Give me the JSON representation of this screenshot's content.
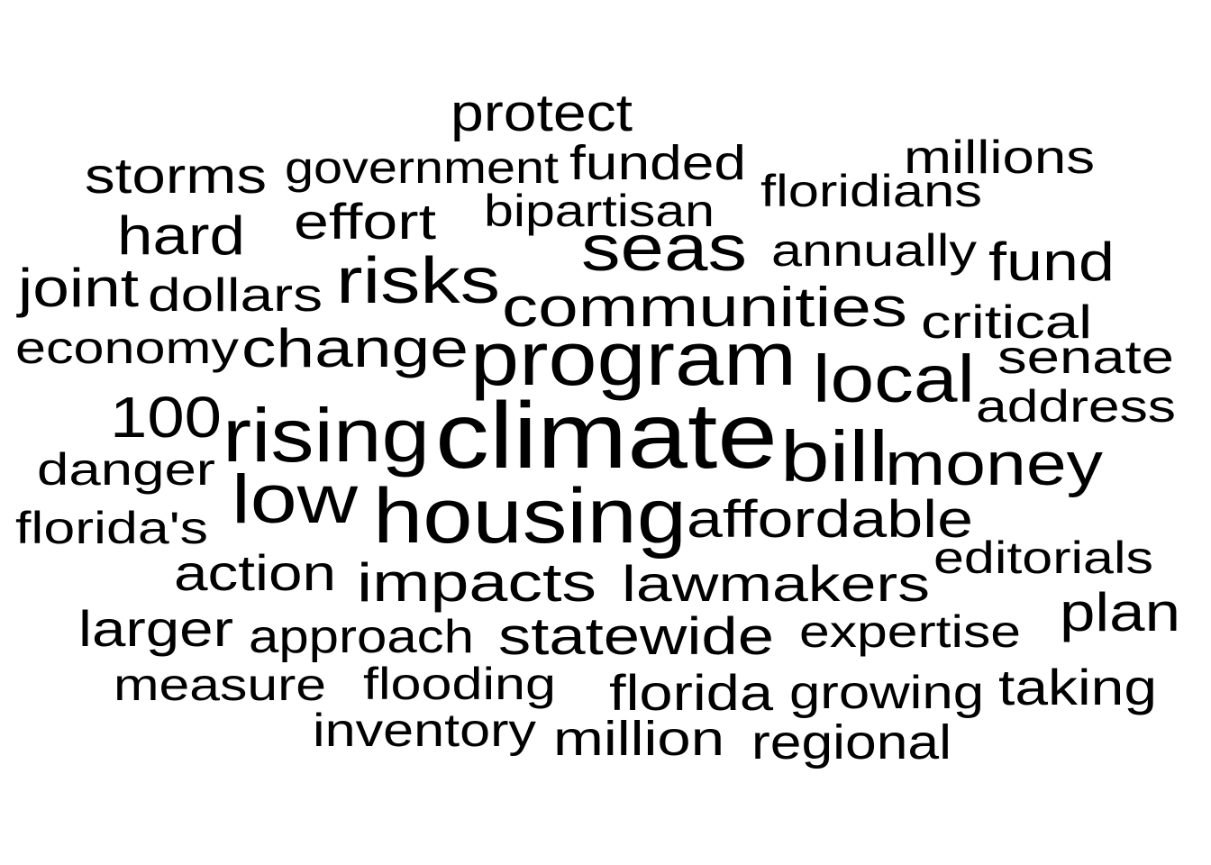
{
  "word_cloud": {
    "color": "#000000",
    "background": "#ffffff",
    "words": [
      {
        "text": "climate",
        "weight": 10
      },
      {
        "text": "housing",
        "weight": 8
      },
      {
        "text": "rising",
        "weight": 8
      },
      {
        "text": "program",
        "weight": 8
      },
      {
        "text": "low",
        "weight": 7
      },
      {
        "text": "bill",
        "weight": 7
      },
      {
        "text": "local",
        "weight": 6
      },
      {
        "text": "money",
        "weight": 6
      },
      {
        "text": "risks",
        "weight": 6
      },
      {
        "text": "seas",
        "weight": 6
      },
      {
        "text": "communities",
        "weight": 6
      },
      {
        "text": "change",
        "weight": 5
      },
      {
        "text": "100",
        "weight": 5
      },
      {
        "text": "affordable",
        "weight": 5
      },
      {
        "text": "impacts",
        "weight": 5
      },
      {
        "text": "statewide",
        "weight": 5
      },
      {
        "text": "hard",
        "weight": 5
      },
      {
        "text": "joint",
        "weight": 5
      },
      {
        "text": "fund",
        "weight": 5
      },
      {
        "text": "plan",
        "weight": 5
      },
      {
        "text": "protect",
        "weight": 5
      },
      {
        "text": "storms",
        "weight": 4
      },
      {
        "text": "effort",
        "weight": 4
      },
      {
        "text": "funded",
        "weight": 4
      },
      {
        "text": "lawmakers",
        "weight": 4
      },
      {
        "text": "larger",
        "weight": 4
      },
      {
        "text": "action",
        "weight": 4
      },
      {
        "text": "taking",
        "weight": 4
      },
      {
        "text": "florida",
        "weight": 4
      },
      {
        "text": "million",
        "weight": 4
      },
      {
        "text": "regional",
        "weight": 4
      },
      {
        "text": "growing",
        "weight": 4
      },
      {
        "text": "critical",
        "weight": 4
      },
      {
        "text": "millions",
        "weight": 4
      },
      {
        "text": "senate",
        "weight": 4
      },
      {
        "text": "government",
        "weight": 3
      },
      {
        "text": "bipartisan",
        "weight": 3
      },
      {
        "text": "floridians",
        "weight": 3
      },
      {
        "text": "annually",
        "weight": 3
      },
      {
        "text": "dollars",
        "weight": 3
      },
      {
        "text": "economy",
        "weight": 3
      },
      {
        "text": "address",
        "weight": 3
      },
      {
        "text": "danger",
        "weight": 3
      },
      {
        "text": "florida's",
        "weight": 3
      },
      {
        "text": "editorials",
        "weight": 3
      },
      {
        "text": "approach",
        "weight": 3
      },
      {
        "text": "expertise",
        "weight": 3
      },
      {
        "text": "measure",
        "weight": 3
      },
      {
        "text": "flooding",
        "weight": 3
      },
      {
        "text": "inventory",
        "weight": 3
      }
    ]
  }
}
